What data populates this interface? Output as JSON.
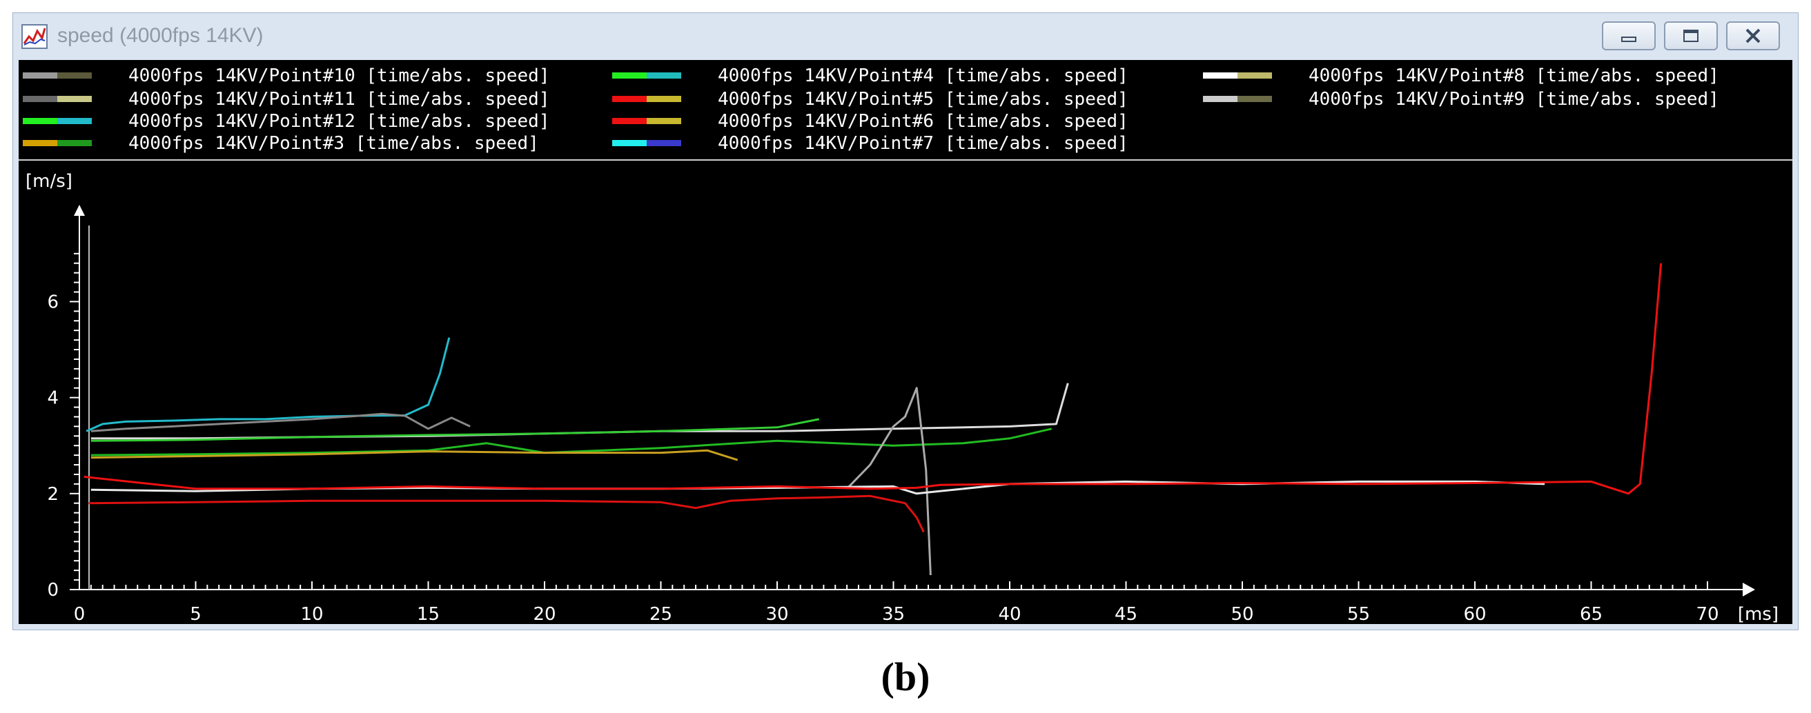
{
  "window": {
    "title": "speed (4000fps 14KV)",
    "icon": "chart-app-icon",
    "buttons": [
      "minimize-icon",
      "maximize-icon",
      "close-icon"
    ]
  },
  "caption": "(b)",
  "colors": {
    "background": "#000000",
    "axes": "#ffffff",
    "window_frame": "#dbe5f1"
  },
  "chart_data": {
    "type": "line",
    "title": "",
    "xlabel": "[ms]",
    "ylabel": "[m/s]",
    "xlim": [
      0,
      72
    ],
    "ylim": [
      0,
      7.6
    ],
    "xticks": [
      0,
      5,
      10,
      15,
      20,
      25,
      30,
      35,
      40,
      45,
      50,
      55,
      60,
      65,
      70
    ],
    "yticks": [
      0,
      2,
      4,
      6
    ],
    "grid": false,
    "legend_position": "top",
    "legend": [
      {
        "label": "4000fps 14KV/Point#10 [time/abs. speed]",
        "swatch": [
          "#9a9a9a",
          "#5a5a3a"
        ]
      },
      {
        "label": "4000fps 14KV/Point#11 [time/abs. speed]",
        "swatch": [
          "#6a6a6a",
          "#c8c888"
        ]
      },
      {
        "label": "4000fps 14KV/Point#12 [time/abs. speed]",
        "swatch": [
          "#22ee22",
          "#22bbcc"
        ]
      },
      {
        "label": "4000fps 14KV/Point#3 [time/abs. speed]",
        "swatch": [
          "#d4a000",
          "#1f9a1f"
        ]
      },
      {
        "label": "4000fps 14KV/Point#4 [time/abs. speed]",
        "swatch": [
          "#22ee22",
          "#22bbbb"
        ]
      },
      {
        "label": "4000fps 14KV/Point#5 [time/abs. speed]",
        "swatch": [
          "#ee1111",
          "#c8b830"
        ]
      },
      {
        "label": "4000fps 14KV/Point#6 [time/abs. speed]",
        "swatch": [
          "#ee1111",
          "#c8b830"
        ]
      },
      {
        "label": "4000fps 14KV/Point#7 [time/abs. speed]",
        "swatch": [
          "#22eeee",
          "#3a3acc"
        ]
      },
      {
        "label": "4000fps 14KV/Point#8 [time/abs. speed]",
        "swatch": [
          "#ffffff",
          "#bdb86a"
        ]
      },
      {
        "label": "4000fps 14KV/Point#9 [time/abs. speed]",
        "swatch": [
          "#cccccc",
          "#6b6b48"
        ]
      }
    ],
    "series": [
      {
        "color": "#22bbcc",
        "x": [
          0.3,
          1,
          2,
          4,
          6,
          8,
          10,
          12,
          14,
          15,
          15.5,
          15.9
        ],
        "y": [
          3.3,
          3.45,
          3.5,
          3.52,
          3.55,
          3.55,
          3.6,
          3.62,
          3.63,
          3.85,
          4.5,
          5.25
        ]
      },
      {
        "color": "#888888",
        "x": [
          0.5,
          2,
          4,
          6,
          8,
          10,
          12,
          13,
          14,
          15,
          16,
          16.8
        ],
        "y": [
          3.3,
          3.35,
          3.4,
          3.45,
          3.5,
          3.55,
          3.62,
          3.66,
          3.62,
          3.35,
          3.58,
          3.4
        ]
      },
      {
        "color": "#dddddd",
        "x": [
          0.5,
          5,
          10,
          15,
          20,
          25,
          30,
          35,
          40,
          42,
          42.5
        ],
        "y": [
          3.15,
          3.15,
          3.18,
          3.2,
          3.25,
          3.3,
          3.3,
          3.35,
          3.4,
          3.45,
          4.3
        ]
      },
      {
        "color": "#33cc33",
        "x": [
          0.5,
          5,
          10,
          15,
          20,
          25,
          30,
          31.8
        ],
        "y": [
          3.1,
          3.12,
          3.18,
          3.22,
          3.25,
          3.3,
          3.38,
          3.55
        ]
      },
      {
        "color": "#22bb22",
        "x": [
          0.5,
          5,
          10,
          15,
          17.5,
          20,
          25,
          30,
          35,
          38,
          40,
          41.8
        ],
        "y": [
          2.8,
          2.82,
          2.85,
          2.9,
          3.05,
          2.85,
          2.95,
          3.1,
          3.0,
          3.05,
          3.15,
          3.35
        ]
      },
      {
        "color": "#c8a020",
        "x": [
          0.5,
          5,
          10,
          15,
          20,
          25,
          27,
          28.3
        ],
        "y": [
          2.75,
          2.78,
          2.82,
          2.88,
          2.85,
          2.85,
          2.9,
          2.7
        ]
      },
      {
        "color": "#aaaaaa",
        "x": [
          33,
          34,
          35,
          35.5,
          36,
          36.4,
          36.6
        ],
        "y": [
          2.1,
          2.6,
          3.4,
          3.6,
          4.2,
          2.5,
          0.3
        ]
      },
      {
        "color": "#e8e8e8",
        "x": [
          0.5,
          5,
          10,
          15,
          20,
          25,
          30,
          35,
          36,
          37,
          40,
          45,
          50,
          55,
          60,
          63
        ],
        "y": [
          2.08,
          2.05,
          2.1,
          2.12,
          2.1,
          2.1,
          2.12,
          2.15,
          2.0,
          2.05,
          2.2,
          2.25,
          2.2,
          2.25,
          2.25,
          2.2
        ]
      },
      {
        "color": "#ee1111",
        "x": [
          0.2,
          5,
          10,
          15,
          20,
          25,
          30,
          34,
          36,
          37,
          40,
          45,
          50,
          55,
          60,
          65,
          66.6,
          67.1,
          67.6,
          68
        ],
        "y": [
          2.35,
          2.1,
          2.1,
          2.15,
          2.1,
          2.1,
          2.15,
          2.1,
          2.12,
          2.18,
          2.2,
          2.2,
          2.22,
          2.2,
          2.22,
          2.25,
          2.0,
          2.2,
          4.5,
          6.8
        ]
      },
      {
        "color": "#dd1111",
        "x": [
          0.4,
          5,
          10,
          15,
          20,
          25,
          26.5,
          28,
          30,
          32,
          34,
          35.5,
          36,
          36.3
        ],
        "y": [
          1.8,
          1.82,
          1.85,
          1.85,
          1.85,
          1.82,
          1.7,
          1.85,
          1.9,
          1.92,
          1.95,
          1.8,
          1.5,
          1.2
        ]
      }
    ]
  }
}
